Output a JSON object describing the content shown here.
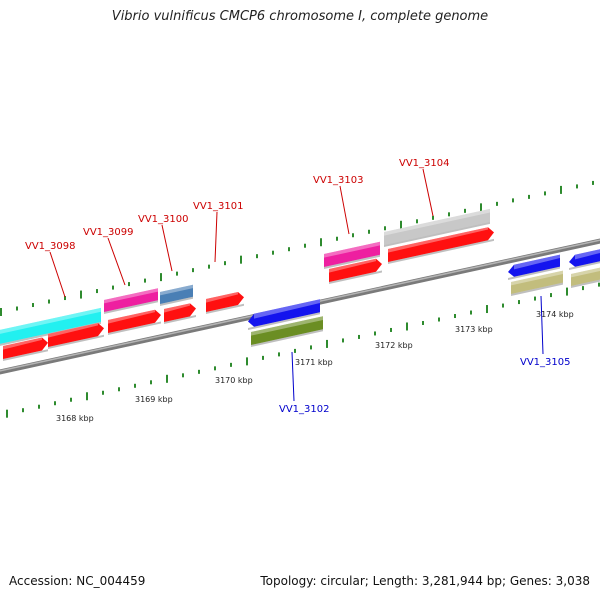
{
  "title": "Vibrio vulnificus CMCP6 chromosome I, complete genome",
  "footer": {
    "accession": "Accession: NC_004459",
    "summary": "Topology: circular; Length: 3,281,944 bp; Genes: 3,038"
  },
  "scale": {
    "ticks": [
      {
        "label": "3168 kbp"
      },
      {
        "label": "3169 kbp"
      },
      {
        "label": "3170 kbp"
      },
      {
        "label": "3171 kbp"
      },
      {
        "label": "3172 kbp"
      },
      {
        "label": "3173 kbp"
      },
      {
        "label": "3174 kbp"
      }
    ]
  },
  "colors": {
    "backbone": "#7a7a7a",
    "tick": "#2e8b2e",
    "label_forward": "#cc0000",
    "label_reverse": "#0000cc",
    "cyan": "#22f0f0",
    "magenta": "#ee1fa0",
    "steel": "#4a7fb5",
    "red": "#ff1010",
    "grey": "#c8c8c8",
    "blue": "#1414ee",
    "olive": "#6b8e23",
    "khaki": "#c2bd7d"
  },
  "genes": [
    {
      "label": "VV1_3098",
      "strand": "forward"
    },
    {
      "label": "VV1_3099",
      "strand": "forward"
    },
    {
      "label": "VV1_3100",
      "strand": "forward"
    },
    {
      "label": "VV1_3101",
      "strand": "forward"
    },
    {
      "label": "VV1_3102",
      "strand": "reverse"
    },
    {
      "label": "VV1_3103",
      "strand": "forward"
    },
    {
      "label": "VV1_3104",
      "strand": "forward"
    },
    {
      "label": "VV1_3105",
      "strand": "reverse"
    }
  ]
}
